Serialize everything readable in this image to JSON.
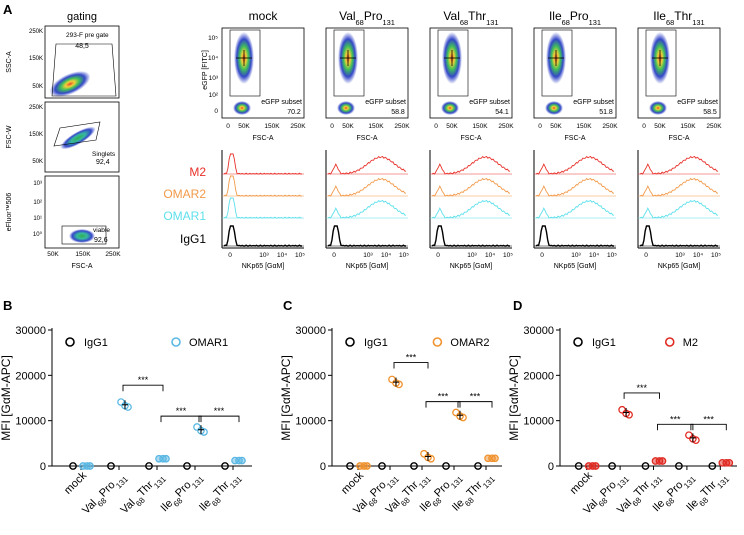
{
  "panel_letters": {
    "a": "A",
    "b": "B",
    "c": "C",
    "d": "D"
  },
  "section_a": {
    "gating_title": "gating",
    "gating_plots": [
      {
        "ylabel": "SSC-A",
        "gate": "293-F pre gate",
        "value": "48,5"
      },
      {
        "ylabel": "FSC-W",
        "gate": "Singlets",
        "value": "92,4"
      },
      {
        "ylabel": "eFluor™506",
        "gate": "viable",
        "value": "92,6"
      }
    ],
    "gating_xlabel": "FSC-A",
    "gating_ssc_ticks": [
      "250K",
      "150K",
      "50K"
    ],
    "gating_fscw_ticks": [
      "250K",
      "150K",
      "50K"
    ],
    "gating_efluor_ticks": [
      "10³",
      "10²",
      "10¹",
      "10⁰"
    ],
    "gating_x_ticks": [
      "50K",
      "150K",
      "250K"
    ],
    "columns": [
      {
        "main": "mock",
        "sub1": "",
        "mid": "",
        "sub2": "",
        "end": "",
        "subset_label": "eGFP subset",
        "subset_value": "70.2"
      },
      {
        "main": "Val",
        "sub1": "68",
        "mid": "Pro",
        "sub2": "131",
        "end": "",
        "subset_label": "eGFP subset",
        "subset_value": "58.8"
      },
      {
        "main": "Val",
        "sub1": "68",
        "mid": "Thr",
        "sub2": "131",
        "end": "",
        "subset_label": "eGFP subset",
        "subset_value": "54.1"
      },
      {
        "main": "Ile",
        "sub1": "68",
        "mid": "Pro",
        "sub2": "131",
        "end": "",
        "subset_label": "eGFP subset",
        "subset_value": "51.8"
      },
      {
        "main": "Ile",
        "sub1": "68",
        "mid": "Thr",
        "sub2": "131",
        "end": "",
        "subset_label": "eGFP subset",
        "subset_value": "58.5"
      }
    ],
    "scatter_ylabel": "eGFP [FITC]",
    "scatter_yticks": [
      "10⁵",
      "10⁴",
      "10³",
      "10²",
      "0"
    ],
    "scatter_xlabel": "FSC-A",
    "scatter_xticks": [
      "0",
      "50K",
      "150K",
      "250K"
    ],
    "histo_rows": [
      {
        "label": "M2",
        "color": "#e8312a"
      },
      {
        "label": "OMAR2",
        "color": "#f29a4a"
      },
      {
        "label": "OMAR1",
        "color": "#5ee0ec"
      },
      {
        "label": "IgG1",
        "color": "#000000"
      }
    ],
    "histo_xticks": [
      "0",
      "10³",
      "10⁴",
      "10⁵"
    ],
    "histo_xlabel": "NKp65 [GαM]"
  },
  "chart_data": [
    {
      "type": "scatter",
      "panel": "B",
      "title": "",
      "ylabel": "MFI [GαM-APC]",
      "ylim": [
        0,
        30000
      ],
      "yticks": [
        "0",
        "10000",
        "20000",
        "30000"
      ],
      "categories": [
        "mock",
        "Val68Pro131",
        "Val68Thr131",
        "Ile68Pro131",
        "Ile68Thr131"
      ],
      "legend": {
        "isotype": "IgG1",
        "antibody": "OMAR1"
      },
      "series": [
        {
          "name": "IgG1",
          "color": "#000000",
          "values": [
            0,
            0,
            0,
            0,
            0
          ]
        },
        {
          "name": "OMAR1",
          "color": "#5bb8e4",
          "values": [
            0,
            13500,
            1600,
            8000,
            1200
          ]
        }
      ],
      "significance": [
        "***",
        "***",
        "***"
      ]
    },
    {
      "type": "scatter",
      "panel": "C",
      "title": "",
      "ylabel": "MFI [GαM-APC]",
      "ylim": [
        0,
        30000
      ],
      "yticks": [
        "0",
        "10000",
        "20000",
        "30000"
      ],
      "categories": [
        "mock",
        "Val68Pro131",
        "Val68Thr131",
        "Ile68Pro131",
        "Ile68Thr131"
      ],
      "legend": {
        "isotype": "IgG1",
        "antibody": "OMAR2"
      },
      "series": [
        {
          "name": "IgG1",
          "color": "#000000",
          "values": [
            0,
            0,
            0,
            0,
            0
          ]
        },
        {
          "name": "OMAR2",
          "color": "#f0922e",
          "values": [
            0,
            18500,
            2100,
            11200,
            1700
          ]
        }
      ],
      "significance": [
        "***",
        "***",
        "***"
      ]
    },
    {
      "type": "scatter",
      "panel": "D",
      "title": "",
      "ylabel": "MFI [GαM-APC]",
      "ylim": [
        0,
        30000
      ],
      "yticks": [
        "0",
        "10000",
        "20000",
        "30000"
      ],
      "categories": [
        "mock",
        "Val68Pro131",
        "Val68Thr131",
        "Ile68Pro131",
        "Ile68Thr131"
      ],
      "legend": {
        "isotype": "IgG1",
        "antibody": "M2"
      },
      "series": [
        {
          "name": "IgG1",
          "color": "#000000",
          "values": [
            0,
            0,
            0,
            0,
            0
          ]
        },
        {
          "name": "M2",
          "color": "#e02a22",
          "values": [
            0,
            11800,
            1100,
            6200,
            700
          ]
        }
      ],
      "significance": [
        "***",
        "***",
        "***"
      ]
    }
  ]
}
